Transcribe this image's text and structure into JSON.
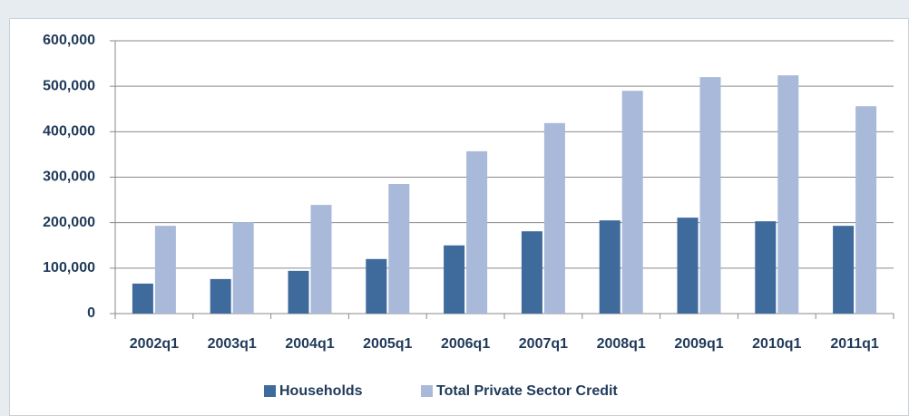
{
  "chart_data": {
    "type": "bar",
    "categories": [
      "2002q1",
      "2003q1",
      "2004q1",
      "2005q1",
      "2006q1",
      "2007q1",
      "2008q1",
      "2009q1",
      "2010q1",
      "2011q1"
    ],
    "series": [
      {
        "name": "Households",
        "color": "#3f6a9c",
        "values": [
          66000,
          76000,
          94000,
          120000,
          150000,
          181000,
          205000,
          211000,
          203000,
          193000
        ]
      },
      {
        "name": "Total Private Sector Credit",
        "color": "#a9b9d9",
        "values": [
          193000,
          201000,
          239000,
          285000,
          357000,
          419000,
          490000,
          520000,
          524000,
          456000
        ]
      }
    ],
    "ylim": [
      0,
      600000
    ],
    "yticks": [
      0,
      {
        "value": 100000,
        "label": "100,000"
      },
      {
        "value": 200000,
        "label": "200,000"
      },
      {
        "value": 300000,
        "label": "300,000"
      },
      {
        "value": 400000,
        "label": "400,000"
      },
      {
        "value": 500000,
        "label": "500,000"
      },
      {
        "value": 600000,
        "label": "600,000"
      }
    ],
    "grid": true,
    "legend": "bottom"
  }
}
